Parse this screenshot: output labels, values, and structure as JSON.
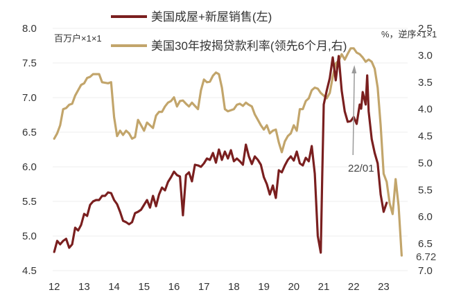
{
  "chart_data": {
    "type": "line",
    "left_unit": "百万户×1×1",
    "right_unit": "%，逆序×1×1",
    "x_ticks": [
      "12",
      "13",
      "14",
      "15",
      "16",
      "17",
      "18",
      "19",
      "20",
      "21",
      "22",
      "23"
    ],
    "y_left_ticks": [
      "8.0",
      "7.5",
      "7.0",
      "6.5",
      "6.0",
      "5.5",
      "5.0",
      "4.5"
    ],
    "y_left_range": [
      4.5,
      8.0
    ],
    "y_right_ticks": [
      "2.5",
      "3.0",
      "3.5",
      "4.0",
      "4.5",
      "5.0",
      "5.5",
      "6.0",
      "6.5",
      "7.0"
    ],
    "y_right_range": [
      2.5,
      7.0
    ],
    "y_right_inverted": true,
    "grid": true,
    "legend_position": "top-center",
    "series": [
      {
        "name": "美国成屋+新屋销售(左)",
        "axis": "left",
        "color": "#7a1f1f",
        "points": [
          [
            2012.0,
            4.77
          ],
          [
            2012.1,
            4.93
          ],
          [
            2012.2,
            4.88
          ],
          [
            2012.3,
            4.93
          ],
          [
            2012.4,
            4.96
          ],
          [
            2012.5,
            4.83
          ],
          [
            2012.6,
            4.88
          ],
          [
            2012.7,
            5.12
          ],
          [
            2012.8,
            5.08
          ],
          [
            2012.9,
            5.16
          ],
          [
            2013.0,
            5.32
          ],
          [
            2013.1,
            5.29
          ],
          [
            2013.2,
            5.45
          ],
          [
            2013.3,
            5.5
          ],
          [
            2013.4,
            5.52
          ],
          [
            2013.5,
            5.52
          ],
          [
            2013.6,
            5.58
          ],
          [
            2013.7,
            5.58
          ],
          [
            2013.8,
            5.63
          ],
          [
            2013.9,
            5.62
          ],
          [
            2014.0,
            5.52
          ],
          [
            2014.1,
            5.46
          ],
          [
            2014.2,
            5.35
          ],
          [
            2014.3,
            5.22
          ],
          [
            2014.4,
            5.2
          ],
          [
            2014.5,
            5.17
          ],
          [
            2014.6,
            5.2
          ],
          [
            2014.7,
            5.33
          ],
          [
            2014.8,
            5.35
          ],
          [
            2014.9,
            5.38
          ],
          [
            2015.0,
            5.45
          ],
          [
            2015.1,
            5.52
          ],
          [
            2015.2,
            5.41
          ],
          [
            2015.3,
            5.58
          ],
          [
            2015.4,
            5.43
          ],
          [
            2015.5,
            5.6
          ],
          [
            2015.6,
            5.7
          ],
          [
            2015.7,
            5.66
          ],
          [
            2015.8,
            5.78
          ],
          [
            2015.9,
            5.85
          ],
          [
            2016.0,
            5.93
          ],
          [
            2016.1,
            5.88
          ],
          [
            2016.2,
            5.86
          ],
          [
            2016.3,
            5.3
          ],
          [
            2016.4,
            5.88
          ],
          [
            2016.5,
            5.92
          ],
          [
            2016.6,
            5.79
          ],
          [
            2016.7,
            6.03
          ],
          [
            2016.8,
            6.02
          ],
          [
            2016.9,
            6.0
          ],
          [
            2017.0,
            6.05
          ],
          [
            2017.1,
            6.12
          ],
          [
            2017.2,
            6.1
          ],
          [
            2017.3,
            6.2
          ],
          [
            2017.4,
            6.06
          ],
          [
            2017.5,
            6.25
          ],
          [
            2017.6,
            6.1
          ],
          [
            2017.7,
            6.22
          ],
          [
            2017.8,
            6.12
          ],
          [
            2017.9,
            6.24
          ],
          [
            2018.0,
            6.08
          ],
          [
            2018.1,
            6.12
          ],
          [
            2018.2,
            6.08
          ],
          [
            2018.3,
            6.03
          ],
          [
            2018.4,
            6.32
          ],
          [
            2018.5,
            6.15
          ],
          [
            2018.6,
            6.04
          ],
          [
            2018.7,
            6.15
          ],
          [
            2018.8,
            6.1
          ],
          [
            2018.9,
            6.03
          ],
          [
            2019.0,
            5.85
          ],
          [
            2019.1,
            5.75
          ],
          [
            2019.2,
            5.6
          ],
          [
            2019.3,
            5.73
          ],
          [
            2019.4,
            5.55
          ],
          [
            2019.5,
            5.95
          ],
          [
            2019.6,
            5.92
          ],
          [
            2019.7,
            6.02
          ],
          [
            2019.8,
            6.1
          ],
          [
            2019.9,
            6.15
          ],
          [
            2020.0,
            6.09
          ],
          [
            2020.1,
            6.22
          ],
          [
            2020.2,
            6.05
          ],
          [
            2020.3,
            6.02
          ],
          [
            2020.4,
            6.13
          ],
          [
            2020.5,
            6.08
          ],
          [
            2020.6,
            6.3
          ],
          [
            2020.7,
            5.9
          ],
          [
            2020.8,
            5.0
          ],
          [
            2020.9,
            4.76
          ],
          [
            2020.95,
            5.9
          ],
          [
            2021.0,
            6.9
          ],
          [
            2021.1,
            7.1
          ],
          [
            2021.2,
            7.28
          ],
          [
            2021.3,
            7.58
          ],
          [
            2021.4,
            7.25
          ],
          [
            2021.5,
            7.6
          ],
          [
            2021.6,
            7.1
          ],
          [
            2021.7,
            6.8
          ],
          [
            2021.8,
            6.65
          ],
          [
            2021.9,
            6.66
          ],
          [
            2022.0,
            6.72
          ],
          [
            2022.1,
            6.62
          ],
          [
            2022.2,
            6.9
          ],
          [
            2022.25,
            6.84
          ],
          [
            2022.3,
            7.08
          ],
          [
            2022.4,
            6.9
          ],
          [
            2022.45,
            7.32
          ],
          [
            2022.5,
            6.8
          ],
          [
            2022.6,
            6.4
          ],
          [
            2022.7,
            6.2
          ],
          [
            2022.8,
            6.05
          ],
          [
            2022.9,
            5.6
          ],
          [
            2023.0,
            5.35
          ],
          [
            2023.1,
            5.48
          ]
        ]
      },
      {
        "name": "美国30年按揭贷款利率(领先6个月,右)",
        "axis": "right",
        "color": "#c2a56b",
        "points": [
          [
            2012.0,
            4.55
          ],
          [
            2012.1,
            4.45
          ],
          [
            2012.2,
            4.3
          ],
          [
            2012.3,
            4.0
          ],
          [
            2012.4,
            3.98
          ],
          [
            2012.5,
            3.92
          ],
          [
            2012.6,
            3.9
          ],
          [
            2012.7,
            3.75
          ],
          [
            2012.8,
            3.65
          ],
          [
            2012.9,
            3.55
          ],
          [
            2013.0,
            3.52
          ],
          [
            2013.1,
            3.42
          ],
          [
            2013.2,
            3.4
          ],
          [
            2013.3,
            3.35
          ],
          [
            2013.4,
            3.35
          ],
          [
            2013.5,
            3.35
          ],
          [
            2013.6,
            3.5
          ],
          [
            2013.7,
            3.51
          ],
          [
            2013.8,
            3.52
          ],
          [
            2013.9,
            3.5
          ],
          [
            2014.0,
            4.15
          ],
          [
            2014.1,
            4.5
          ],
          [
            2014.2,
            4.4
          ],
          [
            2014.3,
            4.48
          ],
          [
            2014.4,
            4.4
          ],
          [
            2014.5,
            4.45
          ],
          [
            2014.6,
            4.55
          ],
          [
            2014.7,
            4.52
          ],
          [
            2014.8,
            4.2
          ],
          [
            2014.9,
            4.3
          ],
          [
            2015.0,
            4.4
          ],
          [
            2015.1,
            4.25
          ],
          [
            2015.2,
            4.3
          ],
          [
            2015.3,
            4.35
          ],
          [
            2015.4,
            4.12
          ],
          [
            2015.5,
            4.05
          ],
          [
            2015.6,
            4.05
          ],
          [
            2015.7,
            3.95
          ],
          [
            2015.8,
            3.88
          ],
          [
            2015.9,
            3.85
          ],
          [
            2016.0,
            3.78
          ],
          [
            2016.1,
            3.95
          ],
          [
            2016.2,
            3.85
          ],
          [
            2016.3,
            3.84
          ],
          [
            2016.4,
            3.9
          ],
          [
            2016.5,
            3.95
          ],
          [
            2016.6,
            3.88
          ],
          [
            2016.7,
            3.94
          ],
          [
            2016.8,
            4.0
          ],
          [
            2016.9,
            3.65
          ],
          [
            2017.0,
            3.45
          ],
          [
            2017.1,
            3.5
          ],
          [
            2017.2,
            3.49
          ],
          [
            2017.3,
            3.38
          ],
          [
            2017.4,
            3.32
          ],
          [
            2017.5,
            3.35
          ],
          [
            2017.6,
            3.6
          ],
          [
            2017.7,
            4.0
          ],
          [
            2017.8,
            4.04
          ],
          [
            2017.9,
            4.02
          ],
          [
            2018.0,
            4.0
          ],
          [
            2018.1,
            3.92
          ],
          [
            2018.2,
            3.9
          ],
          [
            2018.3,
            3.94
          ],
          [
            2018.4,
            3.88
          ],
          [
            2018.5,
            3.92
          ],
          [
            2018.6,
            3.95
          ],
          [
            2018.7,
            4.1
          ],
          [
            2018.8,
            4.2
          ],
          [
            2018.9,
            4.3
          ],
          [
            2019.0,
            4.38
          ],
          [
            2019.1,
            4.3
          ],
          [
            2019.2,
            4.45
          ],
          [
            2019.3,
            4.4
          ],
          [
            2019.4,
            4.38
          ],
          [
            2019.5,
            4.62
          ],
          [
            2019.6,
            4.8
          ],
          [
            2019.7,
            4.6
          ],
          [
            2019.8,
            4.5
          ],
          [
            2019.9,
            4.45
          ],
          [
            2020.0,
            4.3
          ],
          [
            2020.1,
            4.4
          ],
          [
            2020.2,
            4.0
          ],
          [
            2020.3,
            4.0
          ],
          [
            2020.4,
            3.85
          ],
          [
            2020.5,
            3.8
          ],
          [
            2020.6,
            3.65
          ],
          [
            2020.7,
            3.6
          ],
          [
            2020.8,
            3.62
          ],
          [
            2020.9,
            3.7
          ],
          [
            2021.0,
            3.75
          ],
          [
            2021.1,
            3.8
          ],
          [
            2021.2,
            3.7
          ],
          [
            2021.3,
            3.4
          ],
          [
            2021.4,
            3.15
          ],
          [
            2021.5,
            3.1
          ],
          [
            2021.6,
            2.98
          ],
          [
            2021.7,
            3.08
          ],
          [
            2021.8,
            2.97
          ],
          [
            2021.9,
            2.87
          ],
          [
            2022.0,
            2.87
          ],
          [
            2022.1,
            2.95
          ],
          [
            2022.2,
            2.98
          ],
          [
            2022.3,
            3.04
          ],
          [
            2022.4,
            3.12
          ],
          [
            2022.5,
            3.08
          ],
          [
            2022.6,
            3.12
          ],
          [
            2022.7,
            3.25
          ],
          [
            2022.8,
            3.6
          ],
          [
            2022.9,
            4.3
          ],
          [
            2023.0,
            5.2
          ],
          [
            2023.1,
            5.35
          ],
          [
            2023.2,
            5.75
          ],
          [
            2023.3,
            5.95
          ],
          [
            2023.4,
            5.3
          ],
          [
            2023.5,
            5.8
          ],
          [
            2023.6,
            6.72
          ]
        ]
      }
    ],
    "annotations": [
      {
        "text": "22/01",
        "x": 2022.0
      },
      {
        "text": "6.72",
        "x": 2023.6,
        "y": 6.72
      }
    ]
  }
}
